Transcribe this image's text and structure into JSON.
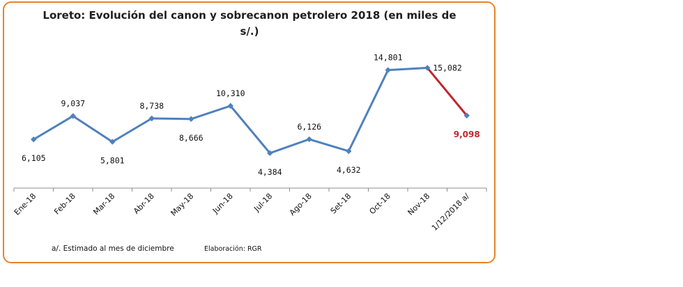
{
  "chart_data": {
    "type": "line",
    "title_lines": [
      "Loreto: Evolución del canon y sobrecanon petrolero 2018 (en miles de",
      "s/.)"
    ],
    "categories": [
      "Ene-18",
      "Feb-18",
      "Mar-18",
      "Abr-18",
      "May-18",
      "Jun-18",
      "Jul-18",
      "Ago-18",
      "Set-18",
      "Oct-18",
      "Nov-18",
      "1/12/2018 a/"
    ],
    "values": [
      6105,
      9037,
      5801,
      8738,
      8666,
      10310,
      4384,
      6126,
      4632,
      14801,
      15082,
      9098
    ],
    "labels": [
      "6,105",
      "9,037",
      "5,801",
      "8,738",
      "8,666",
      "10,310",
      "4,384",
      "6,126",
      "4,632",
      "14,801",
      "15,082",
      "9,098"
    ],
    "label_position": [
      "below",
      "above",
      "below",
      "above",
      "below",
      "above",
      "below",
      "above",
      "below",
      "above",
      "right",
      "below"
    ],
    "estimated_index": 11,
    "ylim": [
      0,
      18000
    ],
    "grid": false,
    "line_color": "#4f81bd",
    "estimate_color": "#c0272d",
    "frame_color": "#e7832a",
    "footnote": "a/. Estimado al mes de diciembre",
    "source": "Elaboración: RGR"
  }
}
